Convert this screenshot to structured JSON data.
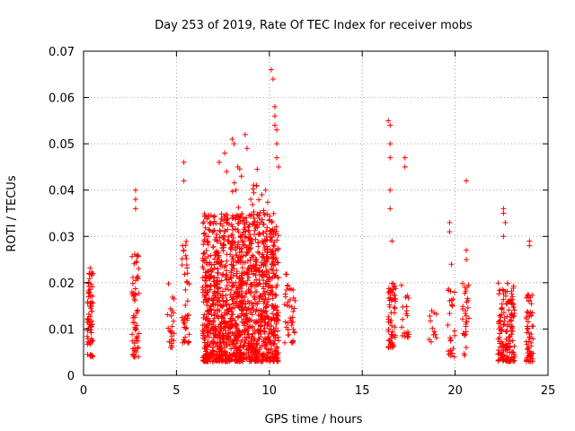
{
  "chart_data": {
    "type": "scatter",
    "title": "Day 253 of 2019, Rate Of TEC Index for receiver mobs",
    "xlabel": "GPS time / hours",
    "ylabel": "ROTI / TECUs",
    "xlim": [
      0,
      25
    ],
    "ylim": [
      0,
      0.07
    ],
    "xticks": [
      0,
      5,
      10,
      15,
      20,
      25
    ],
    "xtick_labels": [
      "0",
      "5",
      "10",
      "15",
      "20",
      "25"
    ],
    "yticks": [
      0,
      0.01,
      0.02,
      0.03,
      0.04,
      0.05,
      0.06,
      0.07
    ],
    "ytick_labels": [
      "0",
      "0.01",
      "0.02",
      "0.03",
      "0.04",
      "0.05",
      "0.06",
      "0.07"
    ],
    "grid": true,
    "marker": "+",
    "color": "#ff0000",
    "clusters": [
      {
        "x": [
          0.2,
          0.5
        ],
        "y": [
          0.004,
          0.024
        ],
        "n": 70
      },
      {
        "x": [
          2.6,
          3.0
        ],
        "y": [
          0.004,
          0.027
        ],
        "n": 60
      },
      {
        "x": [
          4.5,
          4.9
        ],
        "y": [
          0.006,
          0.02
        ],
        "n": 25
      },
      {
        "x": [
          5.3,
          5.7
        ],
        "y": [
          0.007,
          0.03
        ],
        "n": 40
      },
      {
        "x": [
          6.4,
          10.5
        ],
        "y": [
          0.003,
          0.035
        ],
        "n": 1400
      },
      {
        "x": [
          8.0,
          10.0
        ],
        "y": [
          0.02,
          0.045
        ],
        "n": 50
      },
      {
        "x": [
          10.8,
          11.4
        ],
        "y": [
          0.007,
          0.022
        ],
        "n": 40
      },
      {
        "x": [
          16.4,
          16.8
        ],
        "y": [
          0.006,
          0.02
        ],
        "n": 60
      },
      {
        "x": [
          17.1,
          17.5
        ],
        "y": [
          0.008,
          0.02
        ],
        "n": 20
      },
      {
        "x": [
          18.6,
          19.0
        ],
        "y": [
          0.007,
          0.015
        ],
        "n": 12
      },
      {
        "x": [
          19.6,
          20.0
        ],
        "y": [
          0.004,
          0.02
        ],
        "n": 25
      },
      {
        "x": [
          20.4,
          20.8
        ],
        "y": [
          0.004,
          0.02
        ],
        "n": 30
      },
      {
        "x": [
          22.3,
          23.2
        ],
        "y": [
          0.003,
          0.02
        ],
        "n": 160
      },
      {
        "x": [
          23.8,
          24.2
        ],
        "y": [
          0.003,
          0.018
        ],
        "n": 60
      }
    ],
    "outliers": {
      "x": [
        0.3,
        2.8,
        2.8,
        2.8,
        5.4,
        5.4,
        5.4,
        7.3,
        7.6,
        7.7,
        8.0,
        8.1,
        8.2,
        8.3,
        8.5,
        8.7,
        8.8,
        9.0,
        9.3,
        9.6,
        9.8,
        10.1,
        10.2,
        10.3,
        10.3,
        10.3,
        10.4,
        10.4,
        10.4,
        10.5,
        16.4,
        16.5,
        16.5,
        16.5,
        16.5,
        16.5,
        16.6,
        17.3,
        17.3,
        19.7,
        19.7,
        19.8,
        20.6,
        20.6,
        20.6,
        22.6,
        22.6,
        22.6,
        22.7,
        24.0,
        24.0
      ],
      "y": [
        0.022,
        0.04,
        0.038,
        0.036,
        0.046,
        0.042,
        0.027,
        0.046,
        0.048,
        0.044,
        0.051,
        0.05,
        0.04,
        0.045,
        0.043,
        0.052,
        0.049,
        0.038,
        0.041,
        0.039,
        0.04,
        0.066,
        0.064,
        0.058,
        0.056,
        0.054,
        0.053,
        0.05,
        0.047,
        0.045,
        0.055,
        0.054,
        0.05,
        0.047,
        0.04,
        0.036,
        0.029,
        0.047,
        0.045,
        0.033,
        0.031,
        0.024,
        0.042,
        0.027,
        0.025,
        0.036,
        0.035,
        0.03,
        0.033,
        0.029,
        0.028
      ]
    }
  }
}
